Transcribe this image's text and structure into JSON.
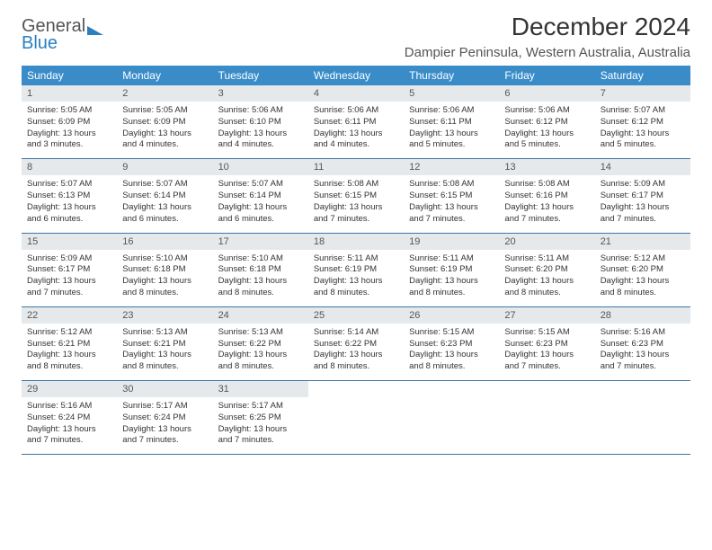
{
  "logo": {
    "text1": "General",
    "text2": "Blue"
  },
  "title": "December 2024",
  "location": "Dampier Peninsula, Western Australia, Australia",
  "header_bg": "#3a8cc9",
  "daynum_bg": "#e6e9ec",
  "border_color": "#3a76a8",
  "weekdays": [
    "Sunday",
    "Monday",
    "Tuesday",
    "Wednesday",
    "Thursday",
    "Friday",
    "Saturday"
  ],
  "days": [
    {
      "n": "1",
      "sr": "5:05 AM",
      "ss": "6:09 PM",
      "dh": "13",
      "dm": "3"
    },
    {
      "n": "2",
      "sr": "5:05 AM",
      "ss": "6:09 PM",
      "dh": "13",
      "dm": "4"
    },
    {
      "n": "3",
      "sr": "5:06 AM",
      "ss": "6:10 PM",
      "dh": "13",
      "dm": "4"
    },
    {
      "n": "4",
      "sr": "5:06 AM",
      "ss": "6:11 PM",
      "dh": "13",
      "dm": "4"
    },
    {
      "n": "5",
      "sr": "5:06 AM",
      "ss": "6:11 PM",
      "dh": "13",
      "dm": "5"
    },
    {
      "n": "6",
      "sr": "5:06 AM",
      "ss": "6:12 PM",
      "dh": "13",
      "dm": "5"
    },
    {
      "n": "7",
      "sr": "5:07 AM",
      "ss": "6:12 PM",
      "dh": "13",
      "dm": "5"
    },
    {
      "n": "8",
      "sr": "5:07 AM",
      "ss": "6:13 PM",
      "dh": "13",
      "dm": "6"
    },
    {
      "n": "9",
      "sr": "5:07 AM",
      "ss": "6:14 PM",
      "dh": "13",
      "dm": "6"
    },
    {
      "n": "10",
      "sr": "5:07 AM",
      "ss": "6:14 PM",
      "dh": "13",
      "dm": "6"
    },
    {
      "n": "11",
      "sr": "5:08 AM",
      "ss": "6:15 PM",
      "dh": "13",
      "dm": "7"
    },
    {
      "n": "12",
      "sr": "5:08 AM",
      "ss": "6:15 PM",
      "dh": "13",
      "dm": "7"
    },
    {
      "n": "13",
      "sr": "5:08 AM",
      "ss": "6:16 PM",
      "dh": "13",
      "dm": "7"
    },
    {
      "n": "14",
      "sr": "5:09 AM",
      "ss": "6:17 PM",
      "dh": "13",
      "dm": "7"
    },
    {
      "n": "15",
      "sr": "5:09 AM",
      "ss": "6:17 PM",
      "dh": "13",
      "dm": "7"
    },
    {
      "n": "16",
      "sr": "5:10 AM",
      "ss": "6:18 PM",
      "dh": "13",
      "dm": "8"
    },
    {
      "n": "17",
      "sr": "5:10 AM",
      "ss": "6:18 PM",
      "dh": "13",
      "dm": "8"
    },
    {
      "n": "18",
      "sr": "5:11 AM",
      "ss": "6:19 PM",
      "dh": "13",
      "dm": "8"
    },
    {
      "n": "19",
      "sr": "5:11 AM",
      "ss": "6:19 PM",
      "dh": "13",
      "dm": "8"
    },
    {
      "n": "20",
      "sr": "5:11 AM",
      "ss": "6:20 PM",
      "dh": "13",
      "dm": "8"
    },
    {
      "n": "21",
      "sr": "5:12 AM",
      "ss": "6:20 PM",
      "dh": "13",
      "dm": "8"
    },
    {
      "n": "22",
      "sr": "5:12 AM",
      "ss": "6:21 PM",
      "dh": "13",
      "dm": "8"
    },
    {
      "n": "23",
      "sr": "5:13 AM",
      "ss": "6:21 PM",
      "dh": "13",
      "dm": "8"
    },
    {
      "n": "24",
      "sr": "5:13 AM",
      "ss": "6:22 PM",
      "dh": "13",
      "dm": "8"
    },
    {
      "n": "25",
      "sr": "5:14 AM",
      "ss": "6:22 PM",
      "dh": "13",
      "dm": "8"
    },
    {
      "n": "26",
      "sr": "5:15 AM",
      "ss": "6:23 PM",
      "dh": "13",
      "dm": "8"
    },
    {
      "n": "27",
      "sr": "5:15 AM",
      "ss": "6:23 PM",
      "dh": "13",
      "dm": "7"
    },
    {
      "n": "28",
      "sr": "5:16 AM",
      "ss": "6:23 PM",
      "dh": "13",
      "dm": "7"
    },
    {
      "n": "29",
      "sr": "5:16 AM",
      "ss": "6:24 PM",
      "dh": "13",
      "dm": "7"
    },
    {
      "n": "30",
      "sr": "5:17 AM",
      "ss": "6:24 PM",
      "dh": "13",
      "dm": "7"
    },
    {
      "n": "31",
      "sr": "5:17 AM",
      "ss": "6:25 PM",
      "dh": "13",
      "dm": "7"
    }
  ],
  "labels": {
    "sunrise": "Sunrise:",
    "sunset": "Sunset:",
    "daylight_prefix": "Daylight:",
    "hours_word": "hours",
    "and_word": "and",
    "minutes_word": "minutes."
  }
}
